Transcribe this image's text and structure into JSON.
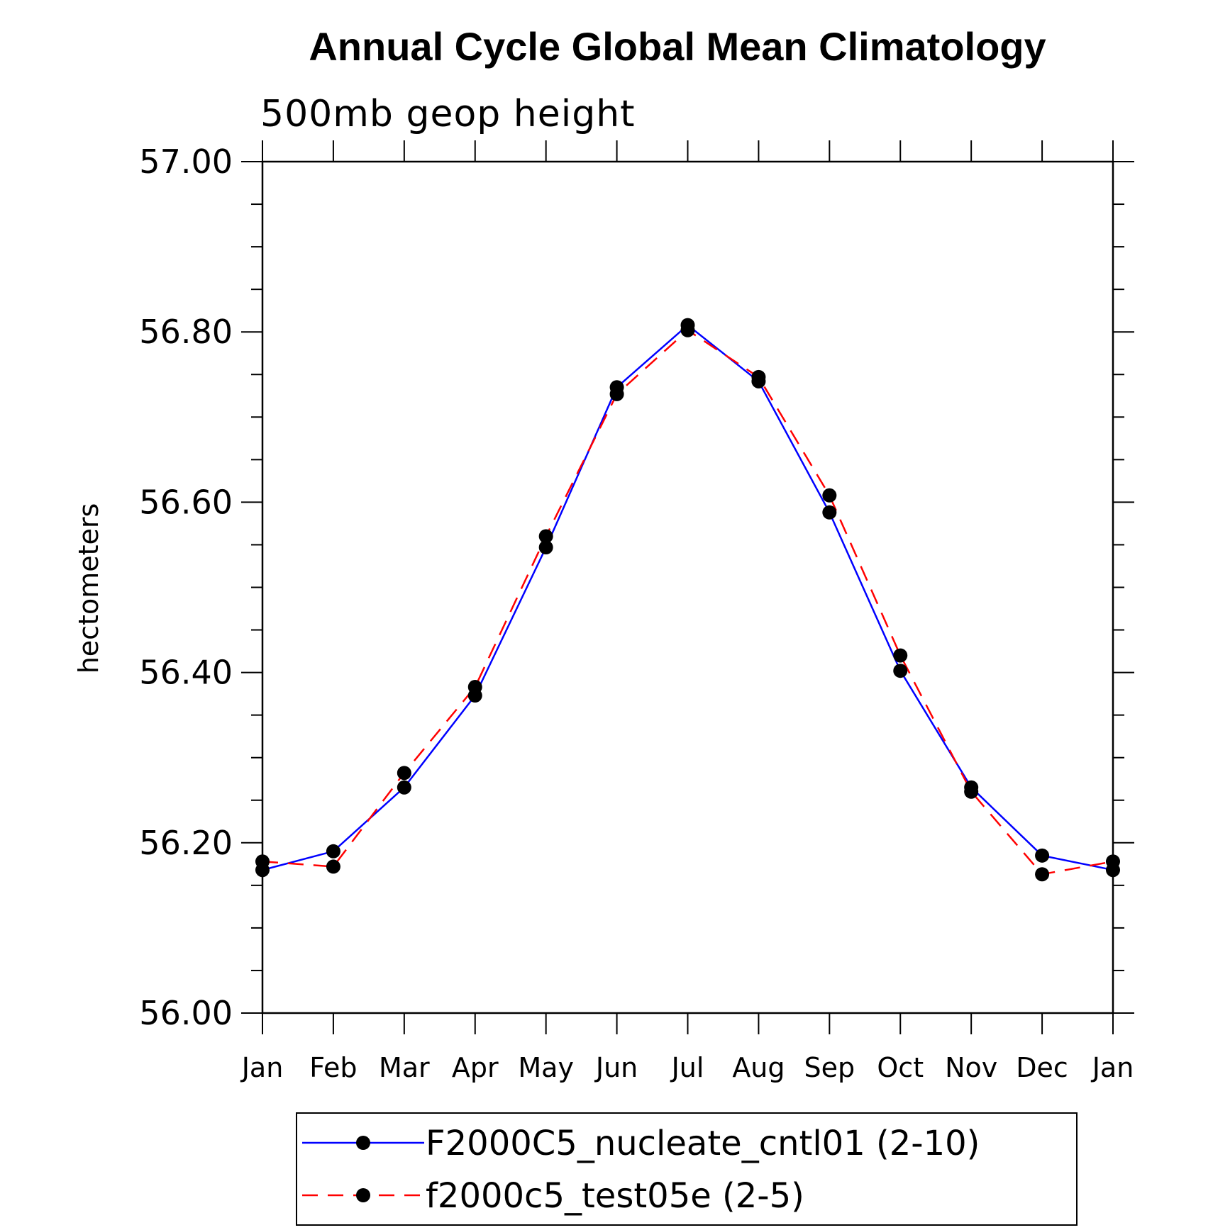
{
  "chart_data": {
    "type": "line",
    "title": "Annual Cycle Global Mean Climatology",
    "subtitle": "500mb geop height",
    "ylabel": "hectometers",
    "xlabel": "",
    "ylim": [
      56.0,
      57.0
    ],
    "y_tick_labels": [
      "56.00",
      "56.20",
      "56.40",
      "56.60",
      "56.80",
      "57.00"
    ],
    "categories": [
      "Jan",
      "Feb",
      "Mar",
      "Apr",
      "May",
      "Jun",
      "Jul",
      "Aug",
      "Sep",
      "Oct",
      "Nov",
      "Dec",
      "Jan"
    ],
    "grid": false,
    "legend_position": "bottom",
    "series": [
      {
        "name": "F2000C5_nucleate_cntl01 (2-10)",
        "color": "#0000ff",
        "line_style": "solid",
        "marker": "filled-circle",
        "values": [
          56.168,
          56.19,
          56.265,
          56.373,
          56.547,
          56.735,
          56.808,
          56.742,
          56.588,
          56.402,
          56.265,
          56.185,
          56.168
        ]
      },
      {
        "name": "f2000c5_test05e (2-5)",
        "color": "#ff0000",
        "line_style": "dashed",
        "marker": "filled-circle",
        "values": [
          56.178,
          56.172,
          56.282,
          56.383,
          56.56,
          56.727,
          56.802,
          56.747,
          56.608,
          56.42,
          56.26,
          56.163,
          56.178
        ]
      }
    ]
  }
}
